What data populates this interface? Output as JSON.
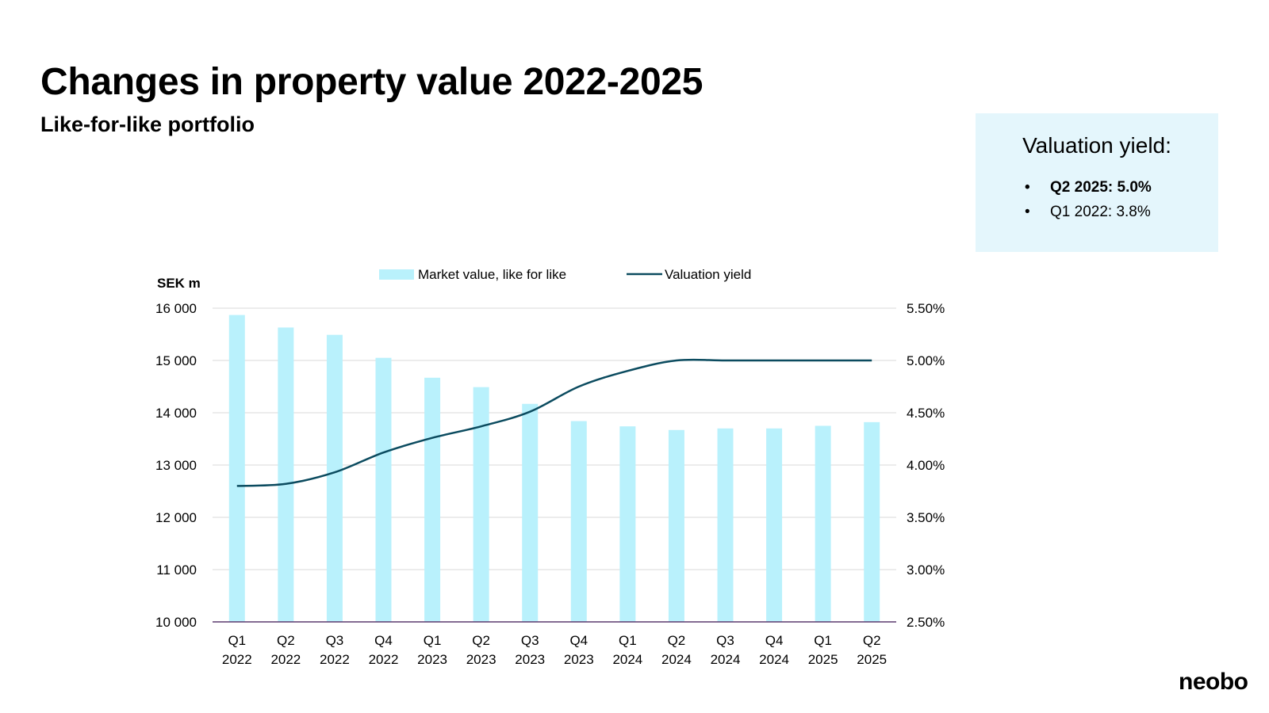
{
  "slide": {
    "title": "Changes in property value 2022-2025",
    "subtitle": "Like-for-like portfolio",
    "logo": "neobo"
  },
  "yield_box": {
    "title": "Valuation yield:",
    "items": [
      "Q2 2025: 5.0%",
      "Q1 2022: 3.8%"
    ]
  },
  "colors": {
    "bar": "#b9f1fc",
    "line": "#0b4b5f",
    "grid": "#d9d9d9",
    "baseline": "#5b3a6e",
    "box_bg": "#e4f6fc"
  },
  "chart_data": {
    "type": "bar",
    "categories": [
      "Q1\n2022",
      "Q2\n2022",
      "Q3\n2022",
      "Q4\n2022",
      "Q1\n2023",
      "Q2\n2023",
      "Q3\n2023",
      "Q4\n2023",
      "Q1\n2024",
      "Q2\n2024",
      "Q3\n2024",
      "Q4\n2024",
      "Q1\n2025",
      "Q2\n2025"
    ],
    "series": [
      {
        "name": "Market value, like for like",
        "type": "bar",
        "axis": "left",
        "values": [
          15870,
          15630,
          15490,
          15050,
          14670,
          14490,
          14170,
          13840,
          13740,
          13670,
          13700,
          13700,
          13750,
          13820
        ]
      },
      {
        "name": "Valuation yield",
        "type": "line",
        "axis": "right",
        "values": [
          3.8,
          3.82,
          3.93,
          4.12,
          4.26,
          4.37,
          4.51,
          4.75,
          4.9,
          5.0,
          5.0,
          5.0,
          5.0,
          5.0
        ]
      }
    ],
    "ylabel": "SEK m",
    "ylim": [
      10000,
      16000
    ],
    "yticks": [
      16000,
      15000,
      14000,
      13000,
      12000,
      11000,
      10000
    ],
    "ytick_labels": [
      "16 000",
      "15 000",
      "14 000",
      "13 000",
      "12 000",
      "11 000",
      "10 000"
    ],
    "y2lim": [
      2.5,
      5.5
    ],
    "y2ticks": [
      5.5,
      5.0,
      4.5,
      4.0,
      3.5,
      3.0,
      2.5
    ],
    "y2tick_labels": [
      "5.50%",
      "5.00%",
      "4.50%",
      "4.00%",
      "3.50%",
      "3.00%",
      "2.50%"
    ],
    "grid": true,
    "legend": "top-center"
  }
}
